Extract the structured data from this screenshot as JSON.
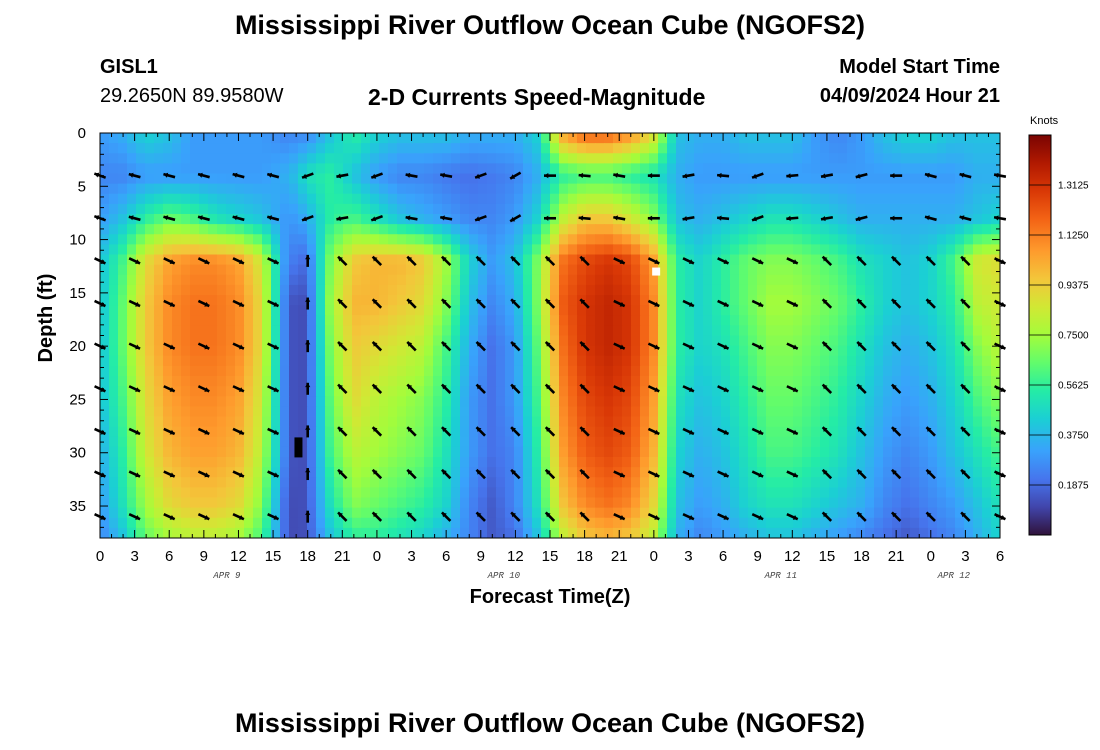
{
  "header": {
    "title": "Mississippi River Outflow Ocean Cube (NGOFS2)",
    "station_id": "GISL1",
    "station_coords": "29.2650N  89.9580W",
    "subtitle": "2-D Currents Speed-Magnitude",
    "start_time_label": "Model Start Time",
    "start_time_value": "04/09/2024 Hour 21"
  },
  "footer": {
    "title": "Mississippi River Outflow Ocean Cube (NGOFS2)"
  },
  "chart_data": {
    "type": "heatmap",
    "title": "2-D Currents Speed-Magnitude",
    "xlabel": "Forecast Time(Z)",
    "ylabel": "Depth (ft)",
    "x_range_hours": [
      0,
      78
    ],
    "y_range_ft": [
      0,
      38
    ],
    "x_ticks": [
      "0",
      "3",
      "6",
      "9",
      "12",
      "15",
      "18",
      "21",
      "0",
      "3",
      "6",
      "9",
      "12",
      "15",
      "18",
      "21",
      "0",
      "3",
      "6",
      "9",
      "12",
      "15",
      "18",
      "21",
      "0",
      "3",
      "6"
    ],
    "y_ticks": [
      "0",
      "5",
      "10",
      "15",
      "20",
      "25",
      "30",
      "35"
    ],
    "y_tick_values": [
      0,
      5,
      10,
      15,
      20,
      25,
      30,
      35
    ],
    "date_labels": [
      {
        "label": "APR 9",
        "hour": 11
      },
      {
        "label": "APR 10",
        "hour": 35
      },
      {
        "label": "APR 11",
        "hour": 59
      },
      {
        "label": "APR 12",
        "hour": 74
      }
    ],
    "colorbar": {
      "unit": "Knots",
      "range": [
        0,
        1.5
      ],
      "ticks": [
        "0.1875",
        "0.3750",
        "0.5625",
        "0.7500",
        "0.9375",
        "1.1250",
        "1.3125"
      ]
    },
    "speed_grid": {
      "hours": [
        0,
        2,
        4,
        6,
        8,
        10,
        12,
        14,
        16,
        17,
        18,
        20,
        22,
        24,
        26,
        28,
        30,
        32,
        34,
        36,
        38,
        40,
        42,
        44,
        46,
        48,
        50,
        52,
        54,
        56,
        58,
        60,
        62,
        64,
        66,
        68,
        70,
        72,
        74,
        76,
        78
      ],
      "depths_ft": [
        0,
        4,
        8,
        12,
        16,
        20,
        25,
        30,
        35,
        38
      ],
      "values": [
        [
          0.3,
          0.35,
          0.45,
          0.4,
          0.3,
          0.3,
          0.3,
          0.3,
          0.25,
          0.25,
          0.25,
          0.4,
          0.55,
          0.45,
          0.4,
          0.4,
          0.4,
          0.35,
          0.35,
          0.35,
          0.45,
          1.05,
          1.2,
          1.2,
          1.1,
          0.9,
          0.4,
          0.35,
          0.35,
          0.4,
          0.4,
          0.4,
          0.3,
          0.25,
          0.3,
          0.4,
          0.45,
          0.45,
          0.4,
          0.4,
          0.4
        ],
        [
          0.25,
          0.25,
          0.3,
          0.3,
          0.3,
          0.3,
          0.3,
          0.3,
          0.35,
          0.4,
          0.5,
          0.55,
          0.4,
          0.3,
          0.25,
          0.25,
          0.22,
          0.2,
          0.22,
          0.25,
          0.35,
          0.55,
          0.6,
          0.6,
          0.55,
          0.5,
          0.35,
          0.3,
          0.3,
          0.3,
          0.3,
          0.3,
          0.3,
          0.3,
          0.3,
          0.3,
          0.3,
          0.3,
          0.3,
          0.35,
          0.35
        ],
        [
          0.3,
          0.4,
          0.55,
          0.65,
          0.6,
          0.5,
          0.45,
          0.4,
          0.3,
          0.3,
          0.35,
          0.55,
          0.6,
          0.5,
          0.4,
          0.35,
          0.3,
          0.25,
          0.25,
          0.3,
          0.45,
          0.8,
          0.95,
          0.95,
          0.85,
          0.7,
          0.4,
          0.35,
          0.4,
          0.45,
          0.5,
          0.5,
          0.45,
          0.4,
          0.35,
          0.35,
          0.35,
          0.35,
          0.35,
          0.4,
          0.45
        ],
        [
          0.4,
          0.6,
          0.9,
          1.05,
          1.1,
          1.1,
          1.05,
          0.85,
          0.3,
          0.2,
          0.2,
          0.7,
          0.95,
          1.0,
          1.0,
          0.95,
          0.75,
          0.45,
          0.3,
          0.4,
          0.7,
          1.15,
          1.25,
          1.3,
          1.25,
          1.05,
          0.55,
          0.45,
          0.55,
          0.65,
          0.7,
          0.7,
          0.65,
          0.6,
          0.5,
          0.45,
          0.4,
          0.45,
          0.6,
          0.85,
          0.9
        ],
        [
          0.4,
          0.65,
          0.95,
          1.1,
          1.15,
          1.15,
          1.1,
          0.9,
          0.25,
          0.1,
          0.15,
          0.75,
          1.0,
          1.0,
          0.95,
          0.9,
          0.7,
          0.4,
          0.25,
          0.35,
          0.7,
          1.2,
          1.3,
          1.35,
          1.3,
          1.1,
          0.55,
          0.45,
          0.55,
          0.65,
          0.75,
          0.75,
          0.7,
          0.65,
          0.55,
          0.45,
          0.4,
          0.45,
          0.55,
          0.8,
          0.85
        ],
        [
          0.4,
          0.65,
          0.95,
          1.1,
          1.15,
          1.15,
          1.1,
          0.9,
          0.25,
          0.1,
          0.15,
          0.7,
          0.95,
          0.9,
          0.85,
          0.8,
          0.6,
          0.35,
          0.2,
          0.3,
          0.65,
          1.15,
          1.3,
          1.35,
          1.3,
          1.1,
          0.55,
          0.45,
          0.5,
          0.6,
          0.7,
          0.7,
          0.65,
          0.6,
          0.5,
          0.4,
          0.35,
          0.4,
          0.5,
          0.7,
          0.8
        ],
        [
          0.4,
          0.6,
          0.9,
          1.05,
          1.1,
          1.1,
          1.05,
          0.85,
          0.25,
          0.1,
          0.15,
          0.65,
          0.9,
          0.8,
          0.75,
          0.7,
          0.55,
          0.3,
          0.2,
          0.3,
          0.6,
          1.1,
          1.25,
          1.3,
          1.25,
          1.05,
          0.5,
          0.4,
          0.45,
          0.55,
          0.65,
          0.65,
          0.6,
          0.55,
          0.45,
          0.35,
          0.3,
          0.35,
          0.45,
          0.6,
          0.7
        ],
        [
          0.35,
          0.55,
          0.85,
          1.0,
          1.05,
          1.05,
          1.0,
          0.8,
          0.25,
          0.1,
          0.15,
          0.6,
          0.8,
          0.75,
          0.7,
          0.65,
          0.5,
          0.3,
          0.2,
          0.25,
          0.55,
          1.05,
          1.2,
          1.25,
          1.2,
          1.0,
          0.45,
          0.35,
          0.4,
          0.5,
          0.6,
          0.6,
          0.55,
          0.5,
          0.4,
          0.3,
          0.25,
          0.3,
          0.4,
          0.5,
          0.6
        ],
        [
          0.3,
          0.5,
          0.75,
          0.9,
          0.95,
          0.95,
          0.9,
          0.7,
          0.2,
          0.1,
          0.15,
          0.5,
          0.7,
          0.65,
          0.6,
          0.55,
          0.45,
          0.25,
          0.15,
          0.25,
          0.5,
          0.95,
          1.1,
          1.15,
          1.1,
          0.9,
          0.4,
          0.3,
          0.35,
          0.45,
          0.5,
          0.5,
          0.45,
          0.4,
          0.35,
          0.25,
          0.2,
          0.25,
          0.3,
          0.4,
          0.5
        ],
        [
          0.25,
          0.4,
          0.65,
          0.75,
          0.8,
          0.8,
          0.75,
          0.6,
          0.2,
          0.1,
          0.15,
          0.4,
          0.55,
          0.55,
          0.5,
          0.45,
          0.35,
          0.25,
          0.15,
          0.2,
          0.4,
          0.8,
          0.95,
          1.0,
          0.95,
          0.8,
          0.35,
          0.25,
          0.3,
          0.35,
          0.4,
          0.4,
          0.35,
          0.3,
          0.25,
          0.2,
          0.15,
          0.2,
          0.25,
          0.35,
          0.45
        ]
      ]
    },
    "vectors": {
      "hours": [
        0,
        3,
        6,
        9,
        12,
        15,
        18,
        21,
        24,
        27,
        30,
        33,
        36,
        39,
        42,
        45,
        48,
        51,
        54,
        57,
        60,
        63,
        66,
        69,
        72,
        75,
        78
      ],
      "depths_ft": [
        4,
        8,
        12,
        16,
        20,
        24,
        28,
        32,
        36
      ],
      "surface_angles_deg": [
        160,
        165,
        165,
        165,
        165,
        165,
        200,
        190,
        200,
        170,
        170,
        200,
        210,
        180,
        175,
        170,
        180,
        190,
        175,
        200,
        185,
        190,
        195,
        180,
        165,
        165,
        170
      ],
      "deep_angles_deg": [
        -25,
        -25,
        -25,
        -25,
        -25,
        -25,
        90,
        135,
        135,
        135,
        135,
        135,
        135,
        135,
        135,
        -25,
        -25,
        -25,
        -25,
        -25,
        -25,
        135,
        135,
        135,
        135,
        135,
        -25
      ]
    },
    "markers": [
      {
        "hour": 48.2,
        "depth_ft": 13.0,
        "color": "#ffffff"
      },
      {
        "hour": 17.2,
        "depth_ft": 29.5,
        "color": "#000000"
      }
    ]
  }
}
